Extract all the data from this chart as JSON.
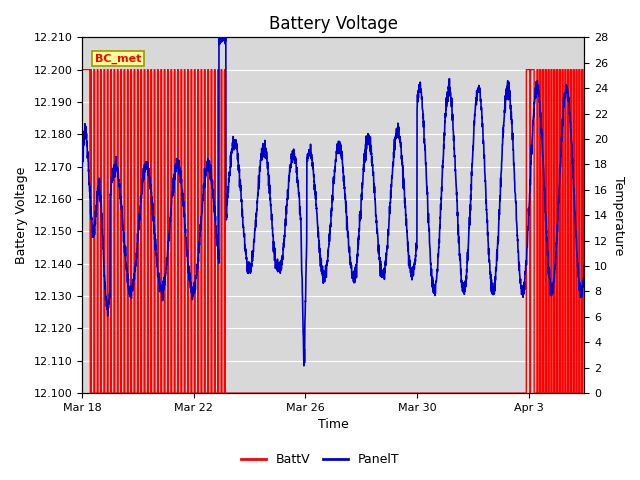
{
  "title": "Battery Voltage",
  "xlabel": "Time",
  "ylabel_left": "Battery Voltage",
  "ylabel_right": "Temperature",
  "annotation_text": "BC_met",
  "ylim_left": [
    12.1,
    12.21
  ],
  "ylim_right": [
    0,
    28
  ],
  "yticks_left": [
    12.1,
    12.11,
    12.12,
    12.13,
    12.14,
    12.15,
    12.16,
    12.17,
    12.18,
    12.19,
    12.2,
    12.21
  ],
  "yticks_right": [
    0,
    2,
    4,
    6,
    8,
    10,
    12,
    14,
    16,
    18,
    20,
    22,
    24,
    26,
    28
  ],
  "xtick_labels": [
    "Mar 18",
    "Mar 22",
    "Mar 26",
    "Mar 30",
    "Apr 3"
  ],
  "xtick_pos": [
    0,
    4,
    8,
    12,
    16
  ],
  "xlim": [
    0,
    18
  ],
  "color_battv": "#FF0000",
  "color_panelt": "#0000CC",
  "background_color": "#FFFFFF",
  "plot_bg_color": "#D8D8D8",
  "grid_color": "#FFFFFF",
  "annotation_bg": "#FFFF99",
  "annotation_border": "#999900",
  "title_fontsize": 12,
  "axis_label_fontsize": 9,
  "tick_fontsize": 8,
  "legend_fontsize": 9
}
